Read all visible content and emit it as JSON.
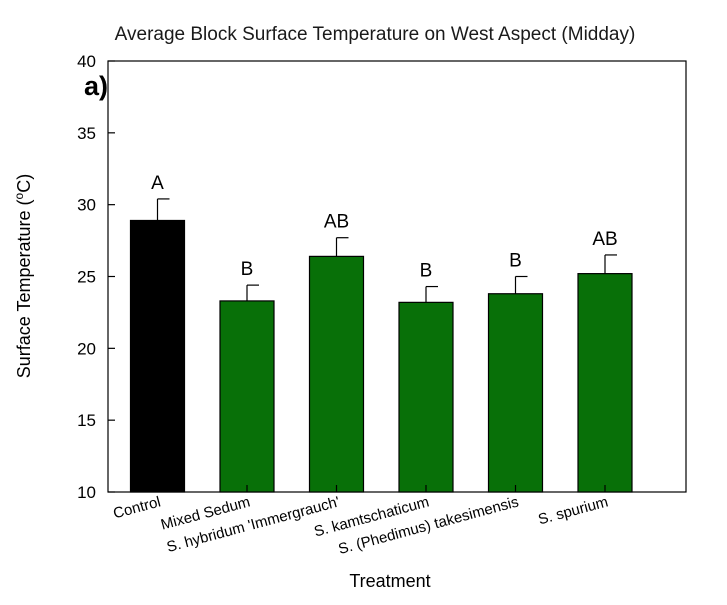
{
  "chart_data": {
    "type": "bar",
    "title": "Average Block Surface Temperature on West Aspect (Midday)",
    "panel_label": "a)",
    "xlabel": "Treatment",
    "ylabel_main": "Surface Temperature (",
    "ylabel_sup": "o",
    "ylabel_unit": "C)",
    "ylim": [
      10,
      40
    ],
    "yticks": [
      10,
      15,
      20,
      25,
      30,
      35,
      40
    ],
    "categories": [
      "Control",
      "Mixed Sedum",
      "S. hybridum 'Immergrauch'",
      "S. kamtschaticum",
      "S. (Phedimus) takesimensis",
      "S. spurium"
    ],
    "values": [
      28.9,
      23.3,
      26.4,
      23.2,
      23.8,
      25.2
    ],
    "errors": [
      1.5,
      1.1,
      1.3,
      1.1,
      1.2,
      1.3
    ],
    "significance": [
      "A",
      "B",
      "AB",
      "B",
      "B",
      "AB"
    ],
    "bar_colors": [
      "#000000",
      "#087008",
      "#087008",
      "#087008",
      "#087008",
      "#087008"
    ],
    "grid": false,
    "legend": "none"
  }
}
